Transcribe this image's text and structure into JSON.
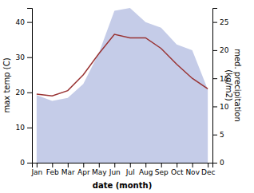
{
  "chart_data": {
    "type": "line",
    "xlabel": "date (month)",
    "ylabel": "max temp (C)",
    "y2label": "med. precipitation\n(kg/m2)",
    "categories": [
      "Jan",
      "Feb",
      "Mar",
      "Apr",
      "May",
      "Jun",
      "Jul",
      "Aug",
      "Sep",
      "Oct",
      "Nov",
      "Dec"
    ],
    "series": [
      {
        "type": "area",
        "axis": "y2",
        "color": "#c5cce8",
        "values": [
          12.0,
          11.0,
          11.5,
          14.0,
          19.5,
          27.0,
          27.5,
          25.0,
          24.0,
          21.0,
          20.0,
          13.0
        ]
      },
      {
        "type": "line",
        "color": "#993333",
        "values": [
          19.5,
          19.0,
          20.5,
          25.0,
          31.0,
          36.5,
          35.5,
          35.5,
          32.5,
          28.0,
          24.0,
          21.0
        ]
      }
    ],
    "ylim": [
      0,
      44
    ],
    "yticks": [
      0,
      10,
      20,
      30,
      40
    ],
    "y2lim": [
      0,
      27.5
    ],
    "y2ticks": [
      0,
      5,
      10,
      15,
      20,
      25
    ]
  }
}
